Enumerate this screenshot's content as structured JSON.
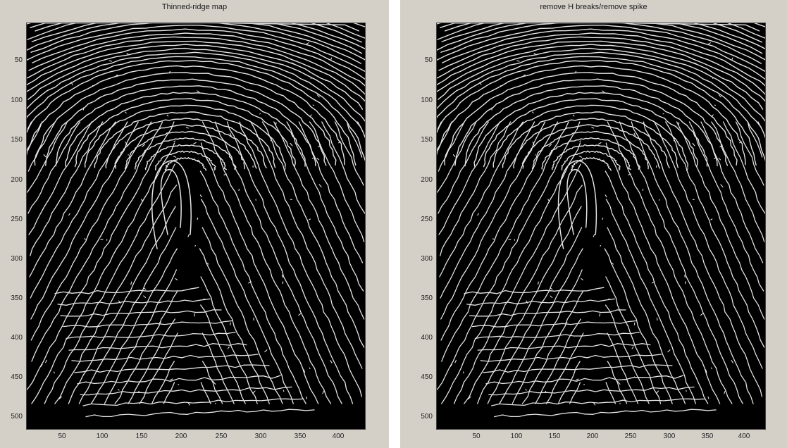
{
  "panels": [
    {
      "id": "left",
      "title": "Thinned-ridge map",
      "yticks": [
        "50",
        "100",
        "150",
        "200",
        "250",
        "300",
        "350",
        "400",
        "450",
        "500"
      ],
      "xticks": [
        "50",
        "100",
        "150",
        "200",
        "250",
        "300",
        "350",
        "400"
      ]
    },
    {
      "id": "right",
      "title": "remove H breaks/remove spike",
      "yticks": [
        "50",
        "100",
        "150",
        "200",
        "250",
        "300",
        "350",
        "400",
        "450",
        "500"
      ],
      "xticks": [
        "50",
        "100",
        "150",
        "200",
        "250",
        "300",
        "350",
        "400"
      ]
    }
  ],
  "colors": {
    "figure_bg": "#d4d0c8",
    "axes_bg": "#000000",
    "ridge": "#e6e6e6"
  },
  "image_content": "fingerprint ridge skeleton (white ridges on black)"
}
